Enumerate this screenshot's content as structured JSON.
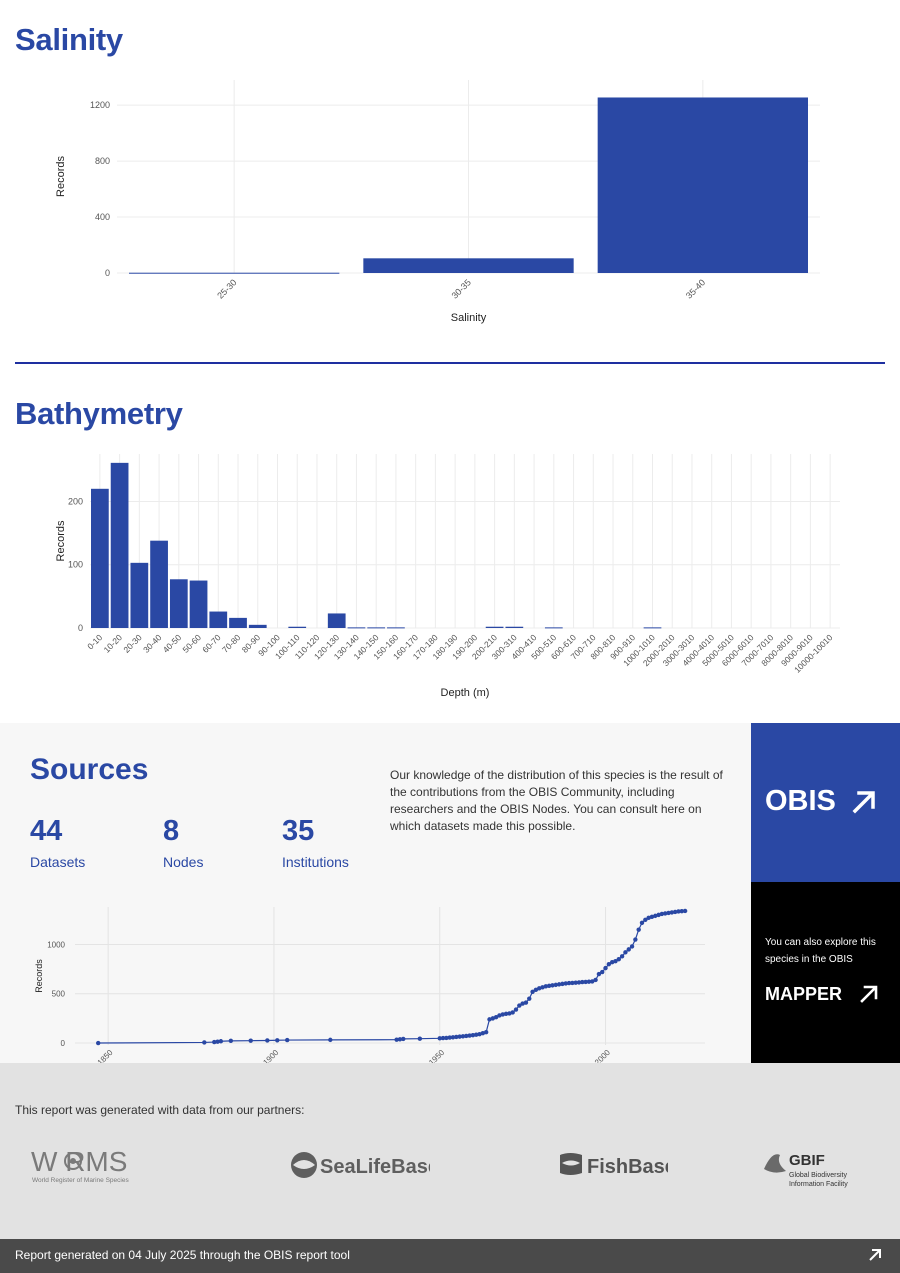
{
  "salinity": {
    "title": "Salinity"
  },
  "bathymetry": {
    "title": "Bathymetry"
  },
  "chart_data": [
    {
      "type": "bar",
      "title": "",
      "xlabel": "Salinity",
      "ylabel": "Records",
      "categories": [
        "25-30",
        "30-35",
        "35-40"
      ],
      "values": [
        2,
        105,
        1255
      ],
      "yticks": [
        0,
        400,
        800,
        1200
      ],
      "ylim": [
        0,
        1380
      ],
      "grid": true,
      "colors": {
        "bar": "#2a48a4"
      }
    },
    {
      "type": "bar",
      "title": "",
      "xlabel": "Depth (m)",
      "ylabel": "Records",
      "categories": [
        "0-10",
        "10-20",
        "20-30",
        "30-40",
        "40-50",
        "50-60",
        "60-70",
        "70-80",
        "80-90",
        "90-100",
        "100-110",
        "110-120",
        "120-130",
        "130-140",
        "140-150",
        "150-160",
        "160-170",
        "170-180",
        "180-190",
        "190-200",
        "200-210",
        "300-310",
        "400-410",
        "500-510",
        "600-610",
        "700-710",
        "800-810",
        "900-910",
        "1000-1010",
        "2000-2010",
        "3000-3010",
        "4000-4010",
        "5000-5010",
        "6000-6010",
        "7000-7010",
        "8000-8010",
        "9000-9010",
        "10000-10010"
      ],
      "values": [
        220,
        261,
        103,
        138,
        77,
        75,
        26,
        16,
        5,
        0,
        2,
        0,
        23,
        1,
        1,
        1,
        0,
        0,
        0,
        0,
        2,
        2,
        0,
        1,
        0,
        0,
        0,
        0,
        1,
        0,
        0,
        0,
        0,
        0,
        0,
        0,
        0,
        0
      ],
      "yticks": [
        0,
        100,
        200
      ],
      "ylim": [
        0,
        275
      ],
      "grid": true,
      "colors": {
        "bar": "#2a48a4"
      }
    },
    {
      "type": "line",
      "title": "",
      "xlabel": "",
      "ylabel": "Records",
      "xticks": [
        1850,
        1900,
        1950,
        2000
      ],
      "yticks": [
        0,
        500,
        1000
      ],
      "xlim": [
        1840,
        2030
      ],
      "ylim": [
        -20,
        1380
      ],
      "grid": true,
      "colors": {
        "line": "#2a48a4"
      },
      "x": [
        1847,
        1879,
        1882,
        1883,
        1884,
        1887,
        1893,
        1898,
        1901,
        1904,
        1917,
        1937,
        1938,
        1939,
        1944,
        1950,
        1951,
        1952,
        1953,
        1954,
        1955,
        1956,
        1957,
        1958,
        1959,
        1960,
        1961,
        1962,
        1963,
        1964,
        1965,
        1966,
        1967,
        1968,
        1969,
        1970,
        1971,
        1972,
        1973,
        1974,
        1975,
        1976,
        1977,
        1978,
        1979,
        1980,
        1981,
        1982,
        1983,
        1984,
        1985,
        1986,
        1987,
        1988,
        1989,
        1990,
        1991,
        1992,
        1993,
        1994,
        1995,
        1996,
        1997,
        1998,
        1999,
        2000,
        2001,
        2002,
        2003,
        2004,
        2005,
        2006,
        2007,
        2008,
        2009,
        2010,
        2011,
        2012,
        2013,
        2014,
        2015,
        2016,
        2017,
        2018,
        2019,
        2020,
        2021,
        2022,
        2023,
        2024
      ],
      "y": [
        0,
        6,
        10,
        14,
        18,
        22,
        24,
        26,
        28,
        30,
        32,
        34,
        38,
        42,
        44,
        48,
        50,
        52,
        55,
        58,
        62,
        65,
        68,
        72,
        76,
        80,
        85,
        90,
        100,
        110,
        240,
        250,
        262,
        280,
        290,
        296,
        300,
        310,
        340,
        380,
        400,
        410,
        450,
        520,
        540,
        555,
        565,
        575,
        580,
        585,
        590,
        595,
        600,
        605,
        608,
        610,
        612,
        615,
        618,
        620,
        622,
        625,
        640,
        700,
        720,
        760,
        800,
        820,
        830,
        850,
        880,
        920,
        950,
        980,
        1050,
        1150,
        1220,
        1250,
        1270,
        1280,
        1290,
        1300,
        1310,
        1315,
        1320,
        1325,
        1330,
        1335,
        1338,
        1340
      ]
    }
  ],
  "sources": {
    "title": "Sources",
    "datasets_count": "44",
    "datasets_label": "Datasets",
    "nodes_count": "8",
    "nodes_label": "Nodes",
    "institutions_count": "35",
    "institutions_label": "Institutions",
    "description": "Our knowledge of the distribution of this species is the result of the contributions from the OBIS Community, including researchers and the OBIS Nodes. You can consult here on which datasets made this possible."
  },
  "obis_link": {
    "label": "OBIS",
    "icon": "arrow-up-right-icon",
    "color": "#2a48a4"
  },
  "mapper_link": {
    "text": "You can also explore this species in the OBIS",
    "label": "MAPPER",
    "icon": "arrow-up-right-icon"
  },
  "partners": {
    "text": "This report was generated with data from our partners:",
    "worms_name": "W RMS",
    "worms_tagline": "World Register of Marine Species",
    "sealifebase_name": "SeaLifeBase",
    "fishbase_name": "FishBase",
    "gbif_name": "GBIF",
    "gbif_tagline_1": "Global Biodiversity",
    "gbif_tagline_2": "Information Facility"
  },
  "footer": {
    "text": "Report generated on 04 July 2025 through the OBIS report tool",
    "icon": "arrow-up-right-icon"
  }
}
